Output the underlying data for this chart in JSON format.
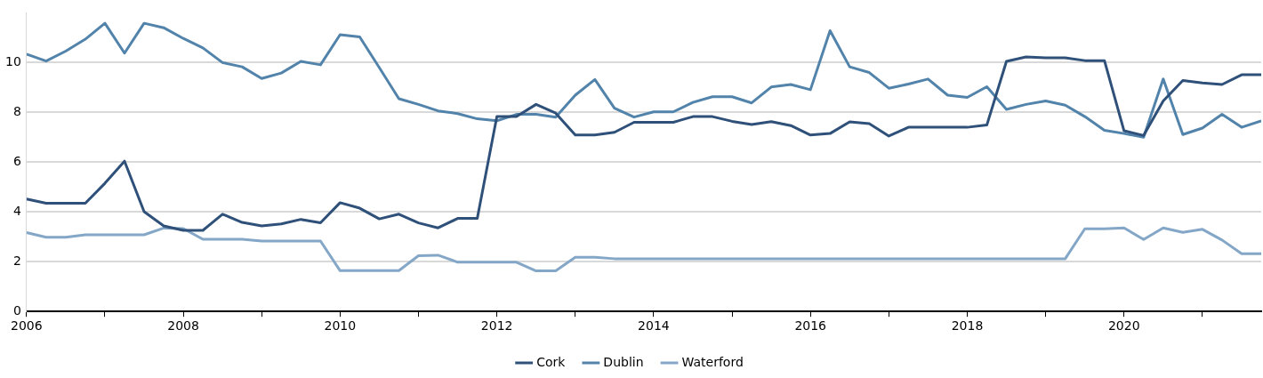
{
  "chart_data": {
    "type": "line",
    "x": [
      2006,
      2006.25,
      2006.5,
      2006.75,
      2007,
      2007.25,
      2007.5,
      2007.75,
      2008,
      2008.25,
      2008.5,
      2008.75,
      2009,
      2009.25,
      2009.5,
      2009.75,
      2010,
      2010.25,
      2010.5,
      2010.75,
      2011,
      2011.25,
      2011.5,
      2011.75,
      2012,
      2012.25,
      2012.5,
      2012.75,
      2013,
      2013.25,
      2013.5,
      2013.75,
      2014,
      2014.25,
      2014.5,
      2014.75,
      2015,
      2015.25,
      2015.5,
      2015.75,
      2016,
      2016.25,
      2016.5,
      2016.75,
      2017,
      2017.25,
      2017.5,
      2017.75,
      2018,
      2018.25,
      2018.5,
      2018.75,
      2019,
      2019.25,
      2019.5,
      2019.75,
      2020,
      2020.25,
      2020.5,
      2020.75,
      2021,
      2021.25,
      2021.5,
      2021.75
    ],
    "series": [
      {
        "name": "Cork",
        "color": "#2e5079",
        "values": [
          4.52,
          4.35,
          4.35,
          4.35,
          5.15,
          6.04,
          4.01,
          3.44,
          3.26,
          3.26,
          3.91,
          3.58,
          3.44,
          3.52,
          3.7,
          3.56,
          4.37,
          4.15,
          3.72,
          3.91,
          3.56,
          3.36,
          3.74,
          3.74,
          7.83,
          7.83,
          8.32,
          7.97,
          7.09,
          7.09,
          7.2,
          7.6,
          7.6,
          7.6,
          7.83,
          7.83,
          7.64,
          7.51,
          7.63,
          7.47,
          7.09,
          7.15,
          7.62,
          7.55,
          7.05,
          7.4,
          7.4,
          7.4,
          7.4,
          7.49,
          10.05,
          10.23,
          10.19,
          10.19,
          10.08,
          10.08,
          7.26,
          7.07,
          8.46,
          9.28,
          9.18,
          9.12,
          9.51,
          9.51
        ]
      },
      {
        "name": "Dublin",
        "color": "#5283ab",
        "values": [
          10.34,
          10.06,
          10.46,
          10.94,
          11.58,
          10.38,
          11.58,
          11.4,
          10.97,
          10.59,
          10.0,
          9.83,
          9.36,
          9.58,
          10.05,
          9.91,
          11.12,
          11.03,
          9.8,
          8.55,
          8.32,
          8.06,
          7.95,
          7.74,
          7.66,
          7.92,
          7.92,
          7.81,
          8.69,
          9.32,
          8.17,
          7.81,
          8.02,
          8.02,
          8.4,
          8.63,
          8.63,
          8.38,
          9.02,
          9.12,
          8.91,
          11.28,
          9.83,
          9.6,
          8.97,
          9.14,
          9.34,
          8.69,
          8.6,
          9.03,
          8.12,
          8.32,
          8.46,
          8.29,
          7.83,
          7.28,
          7.15,
          7.0,
          9.34,
          7.11,
          7.37,
          7.92,
          7.4,
          7.66
        ]
      },
      {
        "name": "Waterford",
        "color": "#84a7c8",
        "values": [
          3.17,
          2.98,
          2.98,
          3.08,
          3.08,
          3.08,
          3.08,
          3.35,
          3.33,
          2.9,
          2.9,
          2.9,
          2.83,
          2.83,
          2.83,
          2.83,
          1.64,
          1.64,
          1.64,
          1.64,
          2.24,
          2.26,
          1.98,
          1.98,
          1.98,
          1.98,
          1.63,
          1.63,
          2.18,
          2.18,
          2.12,
          2.12,
          2.12,
          2.12,
          2.12,
          2.12,
          2.12,
          2.12,
          2.12,
          2.12,
          2.12,
          2.12,
          2.12,
          2.12,
          2.12,
          2.12,
          2.12,
          2.12,
          2.12,
          2.12,
          2.12,
          2.12,
          2.12,
          2.12,
          3.32,
          3.32,
          3.36,
          2.89,
          3.36,
          3.18,
          3.3,
          2.87,
          2.32,
          2.32
        ]
      }
    ],
    "xlim": [
      2006,
      2021.75
    ],
    "xticks": [
      2006,
      {
        "value": 2007,
        "label": null
      },
      2008,
      {
        "value": 2009,
        "label": null
      },
      2010,
      {
        "value": 2011,
        "label": null
      },
      2012,
      {
        "value": 2013,
        "label": null
      },
      2014,
      {
        "value": 2015,
        "label": null
      },
      2016,
      {
        "value": 2017,
        "label": null
      },
      2018,
      {
        "value": 2019,
        "label": null
      },
      2020,
      {
        "value": 2021,
        "label": null
      }
    ],
    "ylim": [
      0,
      12
    ],
    "yticks": [
      0,
      2,
      4,
      6,
      8,
      10
    ],
    "grid": "y",
    "legend": "bottom",
    "marker": "none",
    "line_style": "solid"
  }
}
